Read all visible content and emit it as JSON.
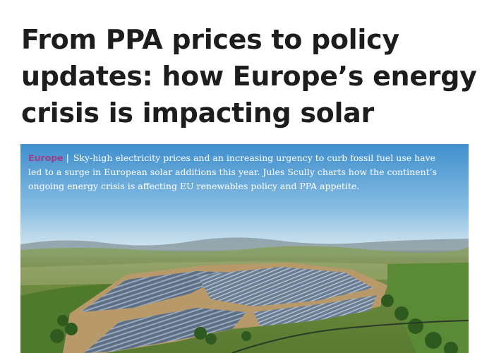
{
  "article": {
    "headline_lines": [
      "From PPA prices to policy",
      "updates: how Europe’s energy",
      "crisis is impacting solar"
    ],
    "section": "Europe",
    "separator": "|",
    "standfirst_lines": [
      "Sky-high electricity prices and an increasing urgency to curb fossil fuel use have",
      "led to a surge in European solar additions this year. Jules Scully charts how the continent’s",
      "ongoing energy crisis is affecting EU renewables policy and PPA appetite."
    ]
  },
  "colors": {
    "headline": "#1d1d1b",
    "section_tag": "#9a3f8a",
    "standfirst_text": "#ffffff"
  }
}
